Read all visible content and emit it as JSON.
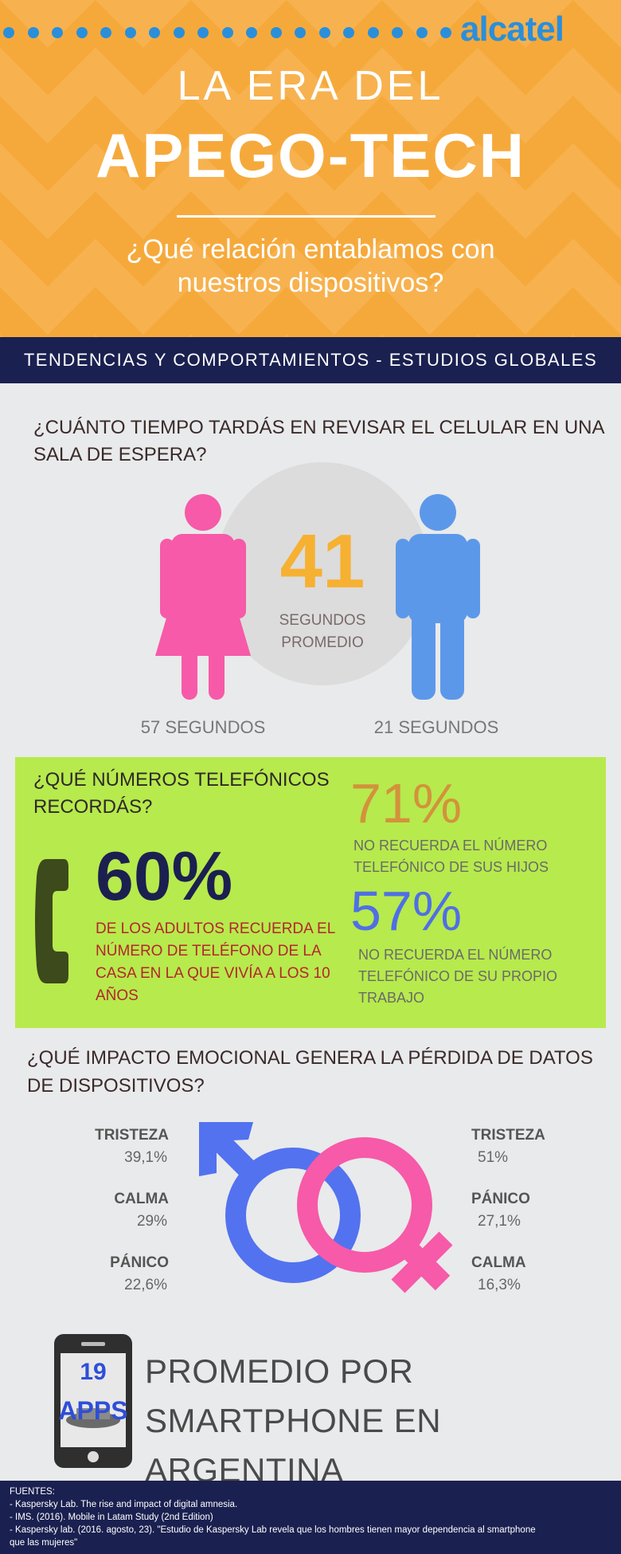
{
  "brand": {
    "logo": "alcatel"
  },
  "header": {
    "title_line1": "LA ERA DEL",
    "title_line2": "APEGO-TECH",
    "subtitle": "¿Qué relación entablamos con nuestros dispositivos?"
  },
  "band": {
    "text": "TENDENCIAS Y COMPORTAMIENTOS - ESTUDIOS GLOBALES"
  },
  "waiting_room": {
    "question": "¿CUÁNTO TIEMPO TARDÁS EN REVISAR EL CELULAR EN UNA SALA DE ESPERA?",
    "average_value": "41",
    "average_label": "SEGUNDOS PROMEDIO",
    "women": "57 SEGUNDOS",
    "men": "21 SEGUNDOS",
    "women_color": "#f65aa8",
    "men_color": "#5c98ea"
  },
  "phone_numbers": {
    "question": "¿QUÉ NÚMEROS TELEFÓNICOS RECORDÁS?",
    "main_value": "60%",
    "main_text": "DE LOS ADULTOS RECUERDA EL NÚMERO DE TELÉFONO DE LA CASA EN LA QUE VIVÍA A LOS 10 AÑOS",
    "stat1_value": "71%",
    "stat1_text": "NO RECUERDA EL NÚMERO TELEFÓNICO DE SUS HIJOS",
    "stat2_value": "57%",
    "stat2_text": "NO RECUERDA EL NÚMERO TELEFÓNICO DE SU PROPIO TRABAJO"
  },
  "emotional_impact": {
    "question": "¿QUÉ IMPACTO EMOCIONAL GENERA LA PÉRDIDA DE DATOS DE DISPOSITIVOS?",
    "men": [
      {
        "label": "TRISTEZA",
        "value": "39,1%"
      },
      {
        "label": "CALMA",
        "value": "29%"
      },
      {
        "label": "PÁNICO",
        "value": "22,6%"
      }
    ],
    "women": [
      {
        "label": "TRISTEZA",
        "value": "51%"
      },
      {
        "label": "PÁNICO",
        "value": "27,1%"
      },
      {
        "label": "CALMA",
        "value": "16,3%"
      }
    ]
  },
  "apps": {
    "count": "19",
    "unit": "APPS",
    "text": "PROMEDIO POR SMARTPHONE EN ARGENTINA"
  },
  "footer": {
    "heading": "FUENTES:",
    "sources": [
      "- Kaspersky Lab. The rise and impact of digital amnesia.",
      "- IMS. (2016). Mobile in Latam Study (2nd Edition)",
      "- Kaspersky lab. (2016. agosto, 23). \"Estudio de Kaspersky Lab revela que los hombres tienen mayor dependencia al smartphone",
      "que las mujeres\""
    ]
  }
}
